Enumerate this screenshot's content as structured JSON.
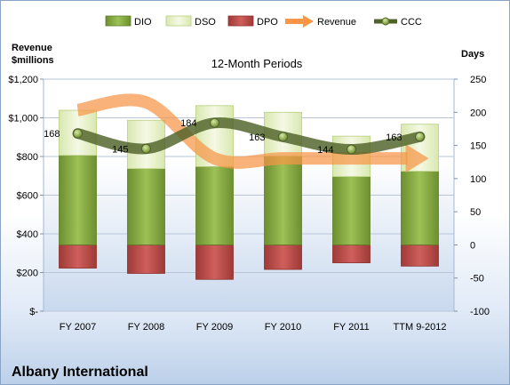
{
  "company": "Albany International",
  "chart_data": {
    "type": "bar",
    "title": "12-Month Periods",
    "y_left_label": "Revenue\n$millions",
    "y_right_label": "Days",
    "categories": [
      "FY 2007",
      "FY 2008",
      "FY 2009",
      "FY 2010",
      "FY 2011",
      "TTM 9-2012"
    ],
    "y_left_ticks": [
      "$-",
      "$200",
      "$400",
      "$600",
      "$800",
      "$1,000",
      "$1,200"
    ],
    "y_left_range": [
      0,
      1200
    ],
    "y_right_ticks": [
      "-100",
      "-50",
      "0",
      "50",
      "100",
      "150",
      "200",
      "250"
    ],
    "y_right_range": [
      -100,
      250
    ],
    "legend": {
      "placement": "top",
      "items": [
        "DIO",
        "DSO",
        "DPO",
        "Revenue",
        "CCC"
      ]
    },
    "series": [
      {
        "name": "DIO",
        "axis": "right",
        "values": [
          135,
          115,
          118,
          134,
          103,
          111
        ]
      },
      {
        "name": "DSO",
        "axis": "right",
        "values": [
          68,
          73,
          92,
          66,
          61,
          71
        ]
      },
      {
        "name": "DPO",
        "axis": "right",
        "values": [
          -35,
          -43,
          -52,
          -37,
          -27,
          -32
        ]
      },
      {
        "name": "Revenue",
        "axis": "left",
        "values": [
          1040,
          1080,
          790,
          790,
          790,
          790
        ]
      },
      {
        "name": "CCC",
        "axis": "right",
        "values": [
          168,
          145,
          184,
          163,
          144,
          163
        ]
      }
    ],
    "ccc_labels": [
      "168",
      "145",
      "184",
      "163",
      "144",
      "163"
    ],
    "colors": {
      "dio": "#8aad47",
      "dio_dark": "#5f7d26",
      "dso": "#e6f0c6",
      "dso_border": "#b7cf7e",
      "dpo": "#c0504d",
      "dpo_dark": "#8e2f2c",
      "revenue": "#f79646",
      "ccc": "#4f6228",
      "ccc_marker": "#9bbb59"
    }
  }
}
